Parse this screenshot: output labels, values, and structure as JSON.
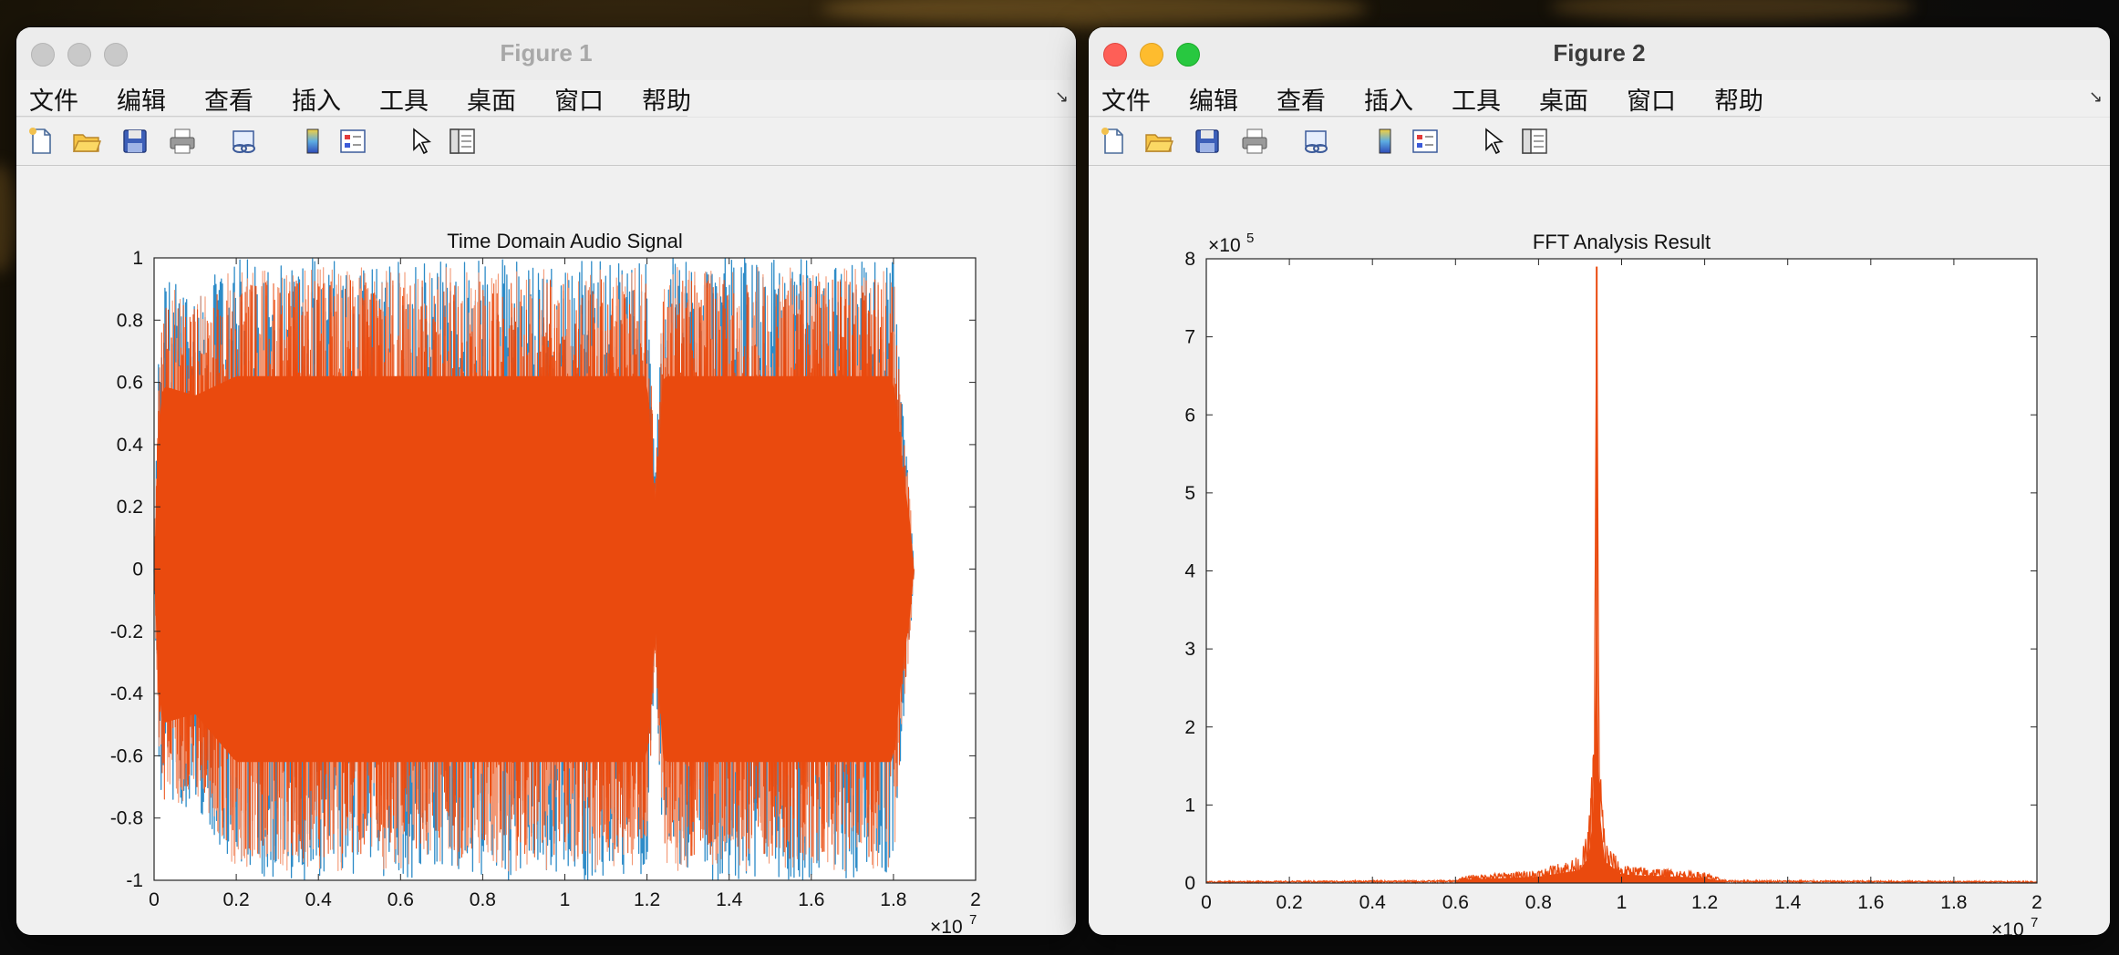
{
  "menu_items": [
    "文件",
    "编辑",
    "查看",
    "插入",
    "工具",
    "桌面",
    "窗口",
    "帮助"
  ],
  "toolbar_icons": [
    "new-figure-icon",
    "open-file-icon",
    "save-icon",
    "print-icon",
    "link-plot-icon",
    "insert-colorbar-icon",
    "insert-legend-icon",
    "pointer-icon",
    "property-inspector-icon"
  ],
  "colors": {
    "signal_orange": "#EA4A0E",
    "signal_blue": "#2E8CC8",
    "signal_light": "#F39773"
  },
  "figure1": {
    "window_title": "Figure 1",
    "active": false,
    "chart_data": {
      "type": "line",
      "title": "Time Domain Audio Signal",
      "xlabel": "",
      "ylabel": "",
      "xlim": [
        0,
        20000000
      ],
      "ylim": [
        -1,
        1
      ],
      "x_ticks": [
        "0",
        "0.2",
        "0.4",
        "0.6",
        "0.8",
        "1",
        "1.2",
        "1.4",
        "1.6",
        "1.8",
        "2"
      ],
      "y_ticks": [
        "1",
        "0.8",
        "0.6",
        "0.4",
        "0.2",
        "0",
        "-0.2",
        "-0.4",
        "-0.6",
        "-0.8",
        "-1"
      ],
      "x_multiplier_base": "×10",
      "x_multiplier_exp": "7",
      "signal_extent": [
        0,
        18500000
      ],
      "envelope": {
        "x": [
          0,
          100000,
          200000,
          1000000,
          2000000,
          4000000,
          8000000,
          12000000,
          12200000,
          12400000,
          16000000,
          18000000,
          18200000,
          18400000,
          18500000
        ],
        "upper": [
          0.0,
          0.7,
          0.95,
          0.9,
          1.0,
          1.0,
          1.0,
          1.0,
          0.3,
          1.0,
          1.0,
          1.0,
          0.55,
          0.25,
          0.0
        ],
        "lower": [
          0.0,
          -0.6,
          -0.8,
          -0.75,
          -1.0,
          -1.0,
          -1.0,
          -1.0,
          -0.3,
          -1.0,
          -1.0,
          -1.0,
          -0.55,
          -0.25,
          0.0
        ]
      },
      "grid": false,
      "series": [
        {
          "color": "#2E8CC8"
        },
        {
          "color": "#EA4A0E"
        }
      ]
    }
  },
  "figure2": {
    "window_title": "Figure 2",
    "active": true,
    "chart_data": {
      "type": "line",
      "title": "FFT Analysis Result",
      "xlabel": "",
      "ylabel": "",
      "xlim": [
        0,
        20000000
      ],
      "ylim": [
        0,
        800000
      ],
      "x_ticks": [
        "0",
        "0.2",
        "0.4",
        "0.6",
        "0.8",
        "1",
        "1.2",
        "1.4",
        "1.6",
        "1.8",
        "2"
      ],
      "y_ticks": [
        "0",
        "1",
        "2",
        "3",
        "4",
        "5",
        "6",
        "7",
        "8"
      ],
      "x_multiplier_base": "×10",
      "x_multiplier_exp": "7",
      "y_multiplier_base": "×10",
      "y_multiplier_exp": "5",
      "grid": false,
      "spectrum_profile": {
        "x": [
          0,
          6000000,
          6200000,
          8000000,
          9000000,
          9200000,
          9300000,
          9350000,
          9400000,
          9450000,
          9500000,
          9600000,
          10000000,
          12000000,
          12500000,
          20000000
        ],
        "y": [
          2000,
          3000,
          8000,
          15000,
          30000,
          60000,
          140000,
          250000,
          790000,
          200000,
          140000,
          50000,
          20000,
          12000,
          3000,
          2000
        ]
      },
      "series": [
        {
          "color": "#EA4A0E"
        }
      ]
    }
  }
}
